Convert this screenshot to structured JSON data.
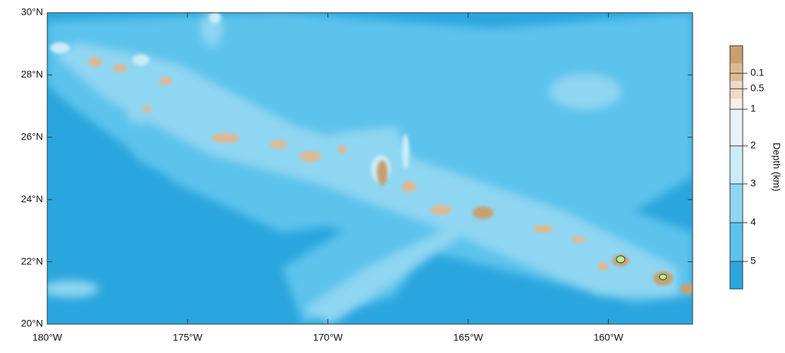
{
  "map": {
    "xlim": [
      -180,
      -157
    ],
    "ylim": [
      20,
      30
    ],
    "x_ticks": [
      {
        "value": -180,
        "label": "180°W"
      },
      {
        "value": -175,
        "label": "175°W"
      },
      {
        "value": -170,
        "label": "170°W"
      },
      {
        "value": -165,
        "label": "165°W"
      },
      {
        "value": -160,
        "label": "160°W"
      }
    ],
    "y_ticks": [
      {
        "value": 20,
        "label": "20°N"
      },
      {
        "value": 22,
        "label": "22°N"
      },
      {
        "value": 24,
        "label": "24°N"
      },
      {
        "value": 26,
        "label": "26°N"
      },
      {
        "value": 28,
        "label": "28°N"
      },
      {
        "value": 30,
        "label": "30°N"
      }
    ],
    "colorbar": {
      "title": "Depth (km)",
      "labels": [
        "0.1",
        "0.5",
        "1",
        "2",
        "3",
        "4",
        "5"
      ]
    }
  }
}
